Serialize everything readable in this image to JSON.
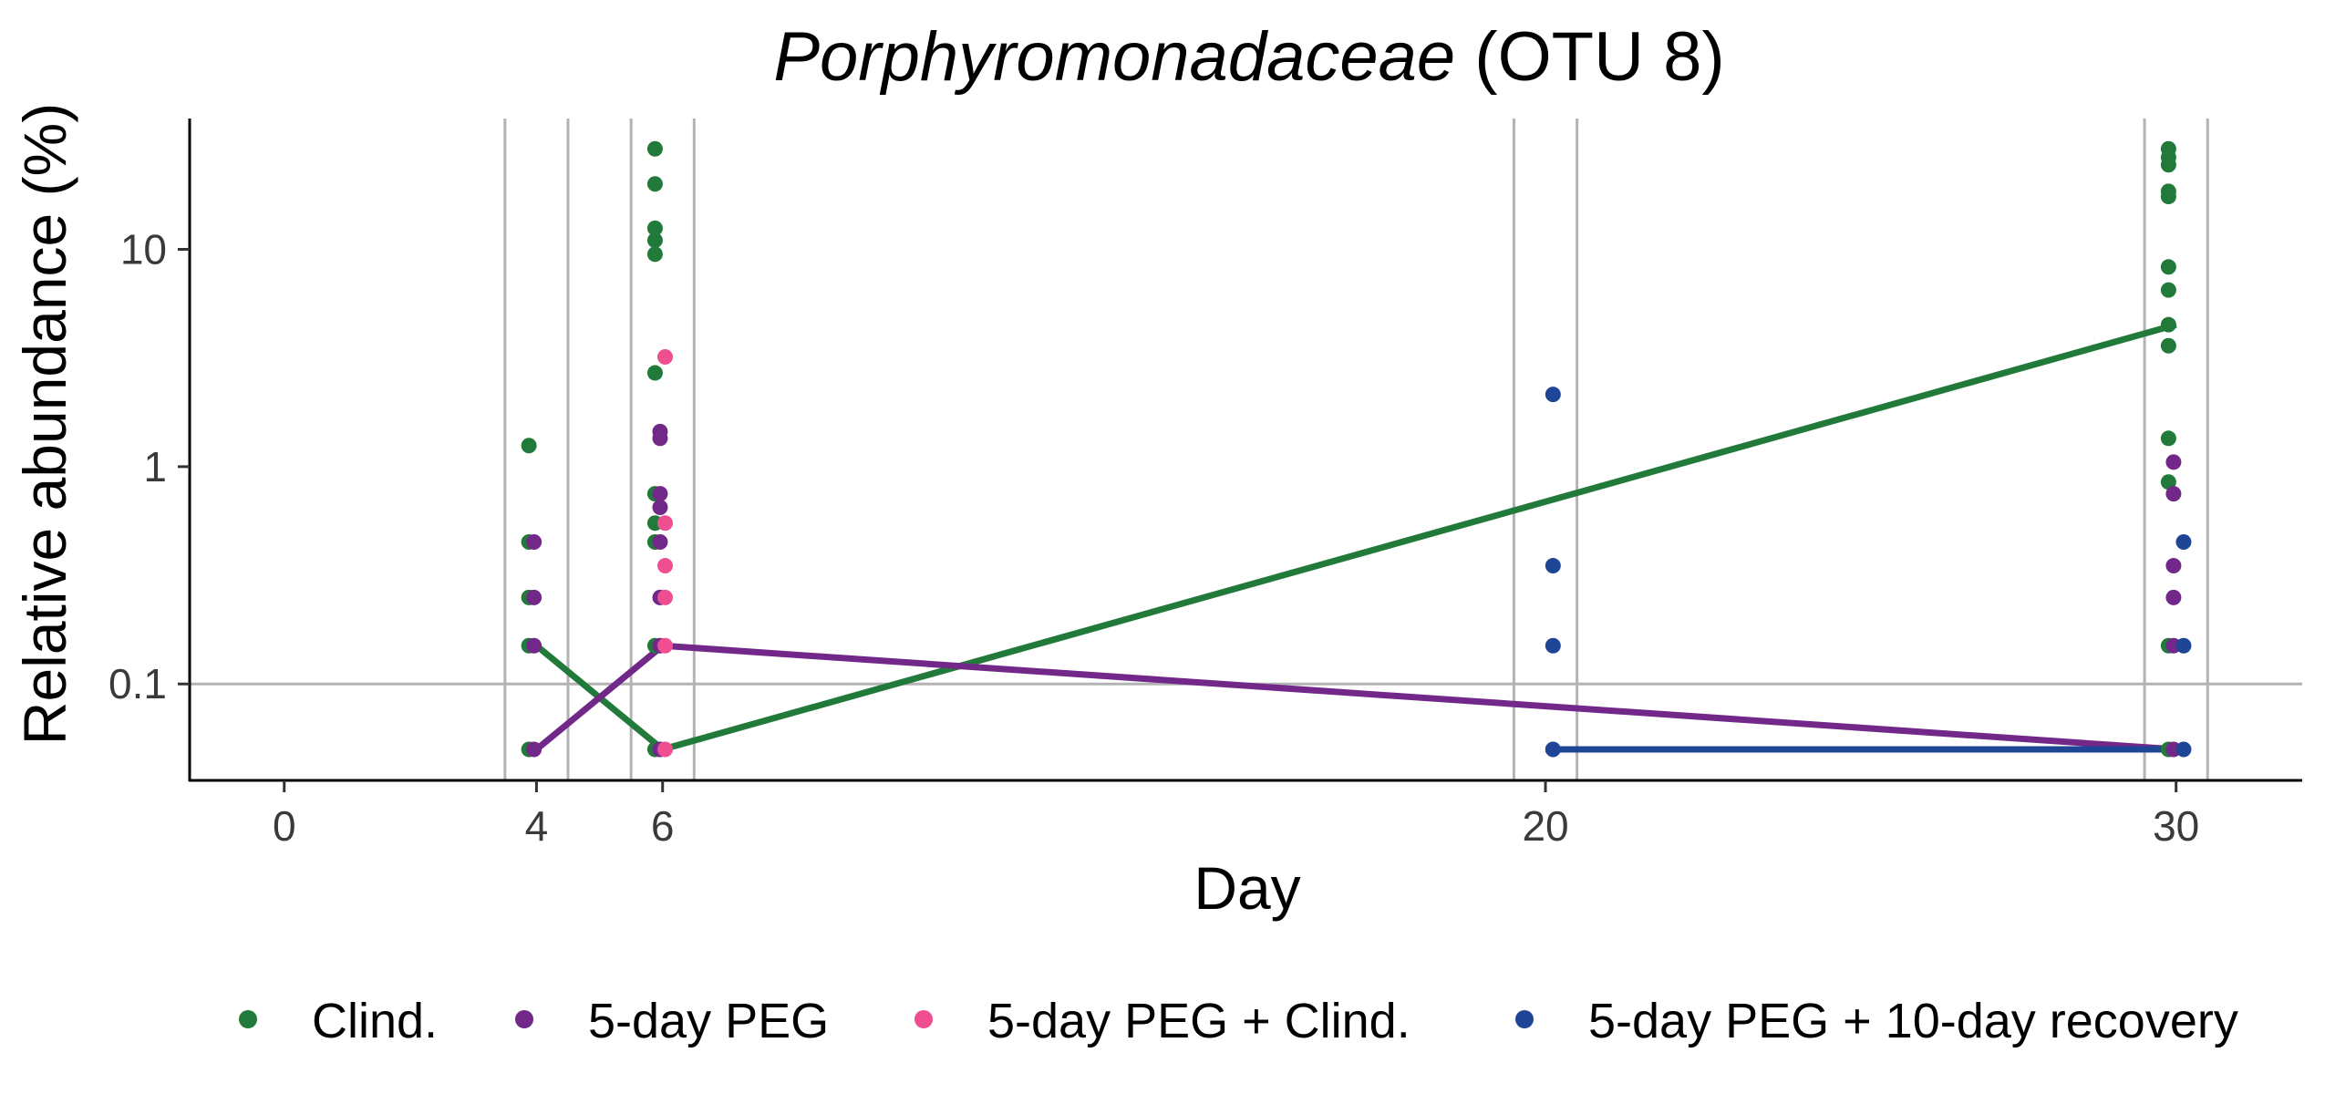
{
  "chart_data": {
    "type": "scatter",
    "title_italic": "Porphyromonadaceae",
    "title_rest": " (OTU 8)",
    "xlabel": "Day",
    "ylabel": "Relative abundance (%)",
    "x_ticks": [
      0,
      4,
      6,
      20,
      30
    ],
    "x_tick_labels": [
      "0",
      "4",
      "6",
      "20",
      "30"
    ],
    "y_scale": "log",
    "y_ticks": [
      0.1,
      1,
      10
    ],
    "y_tick_labels": [
      "0.1",
      "1",
      "10"
    ],
    "xlim": [
      -1.5,
      32
    ],
    "ylim": [
      0.036,
      40
    ],
    "grid": false,
    "reference_hline": 0.1,
    "reference_vlines": [
      3.5,
      4.5,
      5.5,
      6.5,
      19.5,
      20.5,
      29.5,
      30.5
    ],
    "legend_position": "bottom",
    "series": [
      {
        "name": "Clind.",
        "color": "#217a3a",
        "points": [
          {
            "x": 4,
            "y": 1.25
          },
          {
            "x": 4,
            "y": 0.45
          },
          {
            "x": 4,
            "y": 0.25
          },
          {
            "x": 4,
            "y": 0.15
          },
          {
            "x": 4,
            "y": 0.05
          },
          {
            "x": 6,
            "y": 29
          },
          {
            "x": 6,
            "y": 20
          },
          {
            "x": 6,
            "y": 12.5
          },
          {
            "x": 6,
            "y": 11
          },
          {
            "x": 6,
            "y": 9.5
          },
          {
            "x": 6,
            "y": 2.7
          },
          {
            "x": 6,
            "y": 0.75
          },
          {
            "x": 6,
            "y": 0.55
          },
          {
            "x": 6,
            "y": 0.45
          },
          {
            "x": 6,
            "y": 0.15
          },
          {
            "x": 6,
            "y": 0.05
          },
          {
            "x": 30,
            "y": 29
          },
          {
            "x": 30,
            "y": 26.5
          },
          {
            "x": 30,
            "y": 24.5
          },
          {
            "x": 30,
            "y": 18.5
          },
          {
            "x": 30,
            "y": 17.5
          },
          {
            "x": 30,
            "y": 8.3
          },
          {
            "x": 30,
            "y": 6.5
          },
          {
            "x": 30,
            "y": 4.5
          },
          {
            "x": 30,
            "y": 3.6
          },
          {
            "x": 30,
            "y": 1.35
          },
          {
            "x": 30,
            "y": 0.85
          },
          {
            "x": 30,
            "y": 0.15
          },
          {
            "x": 30,
            "y": 0.05
          }
        ],
        "line": [
          {
            "x": 4,
            "y": 0.15
          },
          {
            "x": 6,
            "y": 0.05
          },
          {
            "x": 30,
            "y": 4.5
          }
        ]
      },
      {
        "name": "5-day PEG",
        "color": "#722889",
        "points": [
          {
            "x": 4,
            "y": 0.45
          },
          {
            "x": 4,
            "y": 0.25
          },
          {
            "x": 4,
            "y": 0.15
          },
          {
            "x": 4,
            "y": 0.05
          },
          {
            "x": 6,
            "y": 1.45
          },
          {
            "x": 6,
            "y": 1.35
          },
          {
            "x": 6,
            "y": 0.75
          },
          {
            "x": 6,
            "y": 0.65
          },
          {
            "x": 6,
            "y": 0.45
          },
          {
            "x": 6,
            "y": 0.25
          },
          {
            "x": 6,
            "y": 0.15
          },
          {
            "x": 6,
            "y": 0.05
          },
          {
            "x": 30,
            "y": 1.05
          },
          {
            "x": 30,
            "y": 0.75
          },
          {
            "x": 30,
            "y": 0.35
          },
          {
            "x": 30,
            "y": 0.25
          },
          {
            "x": 30,
            "y": 0.15
          },
          {
            "x": 30,
            "y": 0.05
          }
        ],
        "line": [
          {
            "x": 4,
            "y": 0.05
          },
          {
            "x": 6,
            "y": 0.15
          },
          {
            "x": 30,
            "y": 0.05
          }
        ]
      },
      {
        "name": "5-day PEG + Clind.",
        "color": "#ef4f91",
        "points": [
          {
            "x": 6,
            "y": 3.2
          },
          {
            "x": 6,
            "y": 0.55
          },
          {
            "x": 6,
            "y": 0.35
          },
          {
            "x": 6,
            "y": 0.25
          },
          {
            "x": 6,
            "y": 0.15
          },
          {
            "x": 6,
            "y": 0.05
          }
        ],
        "line": []
      },
      {
        "name": "5-day PEG + 10-day recovery",
        "color": "#1f4596",
        "points": [
          {
            "x": 20,
            "y": 2.15
          },
          {
            "x": 20,
            "y": 0.35
          },
          {
            "x": 20,
            "y": 0.15
          },
          {
            "x": 20,
            "y": 0.05
          },
          {
            "x": 30,
            "y": 0.45
          },
          {
            "x": 30,
            "y": 0.15
          },
          {
            "x": 30,
            "y": 0.05
          }
        ],
        "line": [
          {
            "x": 20,
            "y": 0.05
          },
          {
            "x": 30,
            "y": 0.05
          }
        ]
      }
    ]
  }
}
